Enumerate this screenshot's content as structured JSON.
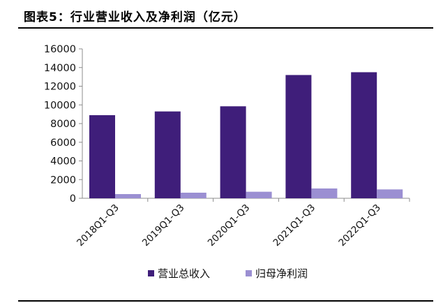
{
  "figure": {
    "title": "图表5：行业营业收入及净利润（亿元）"
  },
  "chart_data": {
    "type": "bar",
    "categories": [
      "2018Q1-Q3",
      "2019Q1-Q3",
      "2020Q1-Q3",
      "2021Q1-Q3",
      "2022Q1-Q3"
    ],
    "series": [
      {
        "name": "营业总收入",
        "values": [
          8900,
          9300,
          9850,
          13200,
          13500
        ],
        "color": "#3f1e7a"
      },
      {
        "name": "归母净利润",
        "values": [
          450,
          600,
          700,
          1050,
          950
        ],
        "color": "#9b8fd2"
      }
    ],
    "yticks": [
      "0",
      "2000",
      "4000",
      "6000",
      "8000",
      "10000",
      "12000",
      "14000",
      "16000"
    ],
    "ylim": [
      0,
      16000
    ],
    "title": "",
    "xlabel": "",
    "ylabel": "",
    "legend_position": "bottom",
    "grid": false
  }
}
